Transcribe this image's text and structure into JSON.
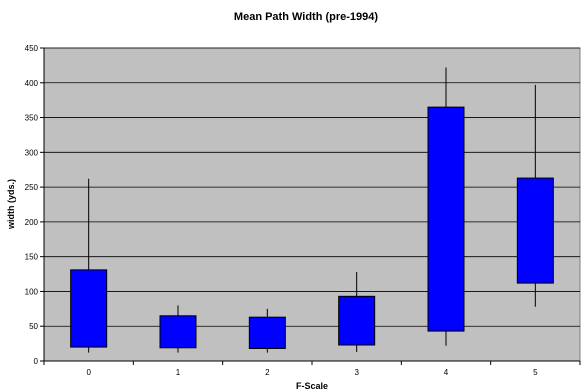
{
  "chart_data": {
    "type": "box",
    "title": "Mean Path Width (pre-1994)",
    "xlabel": "F-Scale",
    "ylabel": "width (yds.)",
    "ylim": [
      0,
      450
    ],
    "yticks": [
      0,
      50,
      100,
      150,
      200,
      250,
      300,
      350,
      400,
      450
    ],
    "categories": [
      "0",
      "1",
      "2",
      "3",
      "4",
      "5"
    ],
    "boxes": [
      {
        "category": "0",
        "min": 12,
        "q1": 20,
        "q3": 131,
        "max": 262
      },
      {
        "category": "1",
        "min": 12,
        "q1": 19,
        "q3": 65,
        "max": 80
      },
      {
        "category": "2",
        "min": 12,
        "q1": 18,
        "q3": 63,
        "max": 75
      },
      {
        "category": "3",
        "min": 13,
        "q1": 23,
        "q3": 93,
        "max": 128
      },
      {
        "category": "4",
        "min": 22,
        "q1": 43,
        "q3": 365,
        "max": 422
      },
      {
        "category": "5",
        "min": 78,
        "q1": 112,
        "q3": 263,
        "max": 397
      }
    ],
    "grid": true,
    "legend": "none",
    "colors": {
      "plot_background": "#c0c0c0",
      "box_fill": "#0000ff",
      "box_stroke": "#000000",
      "gridline": "#000000"
    }
  }
}
